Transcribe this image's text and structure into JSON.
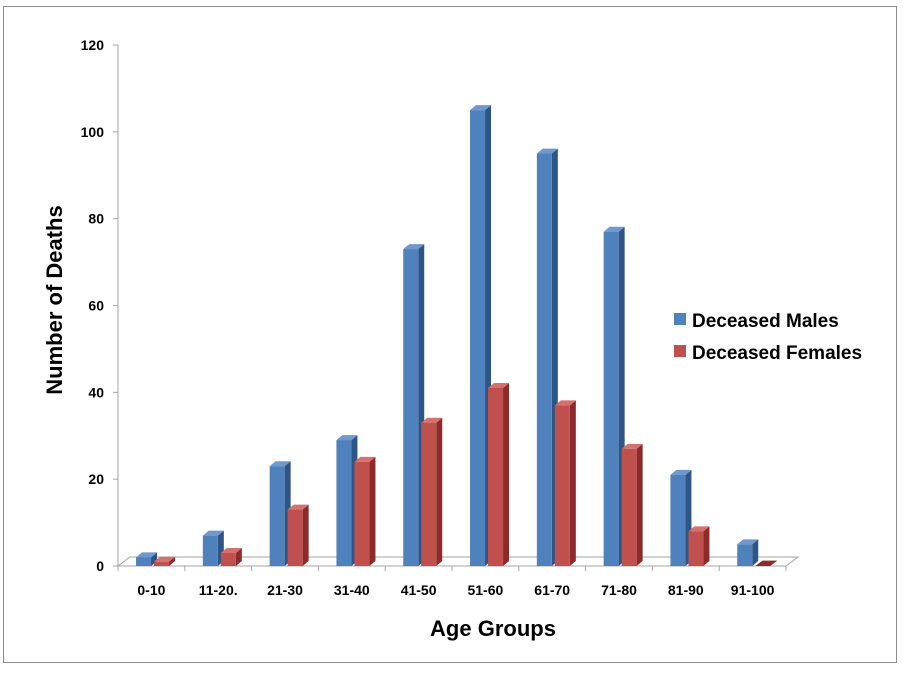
{
  "chart_data": {
    "type": "bar",
    "categories": [
      "0-10",
      "11-20.",
      "21-30",
      "31-40",
      "41-50",
      "51-60",
      "61-70",
      "71-80",
      "81-90",
      "91-100"
    ],
    "series": [
      {
        "name": "Deceased Males",
        "values": [
          2,
          7,
          23,
          29,
          73,
          105,
          95,
          77,
          21,
          5
        ],
        "color": "#4f81bd",
        "side_color": "#2e5586",
        "top_color": "#6f98cc"
      },
      {
        "name": "Deceased Females",
        "values": [
          1,
          3,
          13,
          24,
          33,
          41,
          37,
          27,
          8,
          0
        ],
        "color": "#c0504d",
        "side_color": "#8c2b29",
        "top_color": "#d2716e"
      }
    ],
    "title": "",
    "xlabel": "Age Groups",
    "ylabel": "Number of Deaths",
    "ylim": [
      0,
      120
    ],
    "yticks": [
      0,
      20,
      40,
      60,
      80,
      100,
      120
    ],
    "grid": false,
    "legend_position": "right",
    "style": "3d-clustered-column"
  }
}
